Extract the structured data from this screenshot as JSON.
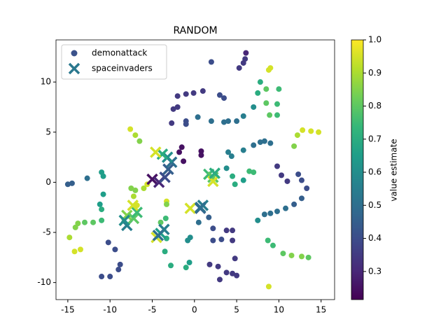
{
  "chart_data": {
    "type": "scatter",
    "title": "RANDOM",
    "xlim": [
      -16.4,
      16.6
    ],
    "ylim": [
      -11.7,
      14.2
    ],
    "xticks": [
      -15,
      -10,
      -5,
      0,
      5,
      10,
      15
    ],
    "yticks": [
      -10,
      -5,
      0,
      5,
      10
    ],
    "legend": "upper left",
    "colormap": "viridis",
    "clim": [
      0.215,
      1.0
    ],
    "cticks": [
      0.3,
      0.4,
      0.5,
      0.6,
      0.7,
      0.8,
      0.9,
      {
        "value": 1.0,
        "label": "1.0"
      }
    ],
    "clabel": "value estimate",
    "series": [
      {
        "name": "demonattack",
        "marker": "circle",
        "color": "#3b528b",
        "x": [
          -15,
          -14.5,
          -11,
          -10.8,
          -12.7,
          -10.8,
          -11.2,
          -11,
          -11,
          -12,
          -13,
          -13.8,
          -14.1,
          -14.8,
          -14.2,
          -13.5,
          -10.2,
          -9.4,
          -8.8,
          -9,
          -10,
          -11,
          -7.6,
          -7,
          -6.5,
          -7.5,
          -7,
          -6,
          -5.6,
          -7.2,
          -6.8,
          -3.3,
          -3.3,
          -4,
          -3.4,
          -3.3,
          -3.5,
          -2.8,
          -1,
          -0.6,
          -0.8,
          -0.5,
          -2.7,
          -2.5,
          -2,
          -2,
          -1,
          -0.1,
          1,
          -1,
          -1,
          0.4,
          2,
          -1.5,
          -1.8,
          -1.3,
          0.8,
          0.8,
          2,
          3,
          3.5,
          5.3,
          5.8,
          6,
          6.1,
          3.5,
          4,
          5,
          5.8,
          7,
          7.5,
          7.8,
          8.5,
          8.8,
          9,
          8.5,
          8.9,
          9.8,
          9.8,
          10,
          3.8,
          4.5,
          4.8,
          5.8,
          6.5,
          7,
          4,
          4.4,
          5.8,
          7,
          7.8,
          8.3,
          9,
          9.8,
          10.3,
          11,
          12.3,
          12.7,
          13.3,
          12.7,
          11.8,
          10.8,
          9.8,
          9,
          8.3,
          7.5,
          8.7,
          9.3,
          10.5,
          11.5,
          12.7,
          13.5,
          8.8,
          11.8,
          12.2,
          12.8,
          13.8,
          14.7,
          0.5,
          1.7,
          2.2,
          2.2,
          3.2,
          3.8,
          4.5,
          4.5,
          1.8,
          2.8,
          3,
          3.8,
          4.5,
          5,
          4.8
        ],
        "y": [
          -0.2,
          -0.1,
          1,
          0.6,
          0.4,
          -1.2,
          -2.2,
          -2.7,
          -3.8,
          -4,
          -4,
          -4.1,
          -4.5,
          -5.5,
          -6.9,
          -6.7,
          -6,
          -6.7,
          -8.2,
          -8.7,
          -9.4,
          -9.4,
          5.3,
          4.7,
          4.1,
          -0.6,
          -0.8,
          -0.6,
          -0.2,
          -1.4,
          -2.3,
          -1.9,
          -2.2,
          -4,
          -3.6,
          -5.6,
          -6.9,
          -8.3,
          -8.5,
          -8,
          -5.8,
          -5.5,
          5.9,
          7.3,
          7.5,
          8.6,
          8.8,
          8.9,
          9.1,
          5.8,
          6.1,
          6.5,
          6.1,
          3.5,
          3,
          2.1,
          3.1,
          2.7,
          12,
          8.7,
          8.4,
          11.4,
          11.9,
          12.3,
          12.9,
          6,
          6.1,
          6.1,
          6.6,
          7.5,
          8.9,
          10,
          9.3,
          11.2,
          11.4,
          7.9,
          6.7,
          7.8,
          6.7,
          9.3,
          1.4,
          0.6,
          -0.2,
          0.2,
          1.1,
          1,
          3,
          2.6,
          3.2,
          3.7,
          4,
          4.1,
          3.9,
          1.6,
          0.7,
          0.1,
          0.8,
          0.2,
          -0.6,
          -1.6,
          -2.2,
          -2.6,
          -2.9,
          -3.1,
          -3.2,
          -3.8,
          -5.8,
          -6.3,
          -7.1,
          -7.3,
          -7.4,
          -7.5,
          -10.4,
          3.6,
          4.7,
          5.2,
          5.1,
          5,
          -4,
          -3.5,
          -4.6,
          -5.8,
          -5.7,
          -4.8,
          -4.8,
          -5.8,
          -8.2,
          -8.4,
          -9.7,
          -9,
          -9.1,
          -9.3,
          -7.6
        ],
        "c": [
          0.45,
          0.45,
          0.65,
          0.65,
          0.5,
          0.65,
          0.65,
          0.7,
          0.75,
          0.8,
          0.8,
          0.85,
          0.85,
          0.9,
          0.95,
          0.95,
          0.4,
          0.4,
          0.4,
          0.4,
          0.4,
          0.4,
          0.95,
          0.9,
          0.85,
          0.85,
          0.85,
          0.9,
          0.95,
          0.9,
          0.95,
          0.95,
          0.85,
          0.8,
          0.75,
          0.7,
          0.7,
          0.7,
          0.7,
          0.65,
          0.6,
          0.6,
          0.35,
          0.35,
          0.35,
          0.35,
          0.35,
          0.35,
          0.35,
          0.4,
          0.4,
          0.5,
          0.5,
          0.25,
          0.25,
          0.25,
          0.25,
          0.25,
          0.4,
          0.4,
          0.4,
          0.35,
          0.35,
          0.35,
          0.3,
          0.5,
          0.5,
          0.5,
          0.55,
          0.6,
          0.7,
          0.7,
          0.8,
          0.95,
          0.95,
          0.8,
          0.8,
          0.75,
          0.75,
          0.75,
          0.6,
          0.7,
          0.7,
          0.65,
          0.75,
          0.75,
          0.55,
          0.55,
          0.55,
          0.5,
          0.5,
          0.5,
          0.5,
          0.35,
          0.35,
          0.35,
          0.4,
          0.4,
          0.4,
          0.45,
          0.45,
          0.5,
          0.5,
          0.5,
          0.5,
          0.6,
          0.75,
          0.75,
          0.8,
          0.85,
          0.85,
          0.8,
          0.95,
          0.85,
          0.9,
          0.95,
          0.95,
          0.95,
          0.5,
          0.45,
          0.4,
          0.4,
          0.4,
          0.35,
          0.35,
          0.35,
          0.35,
          0.35,
          0.35,
          0.35,
          0.35,
          0.35,
          0.35
        ]
      },
      {
        "name": "spaceinvaders",
        "marker": "x",
        "color": "#2a788e",
        "x": [
          -8,
          -8,
          -7.2,
          -6.8,
          -7.3,
          -8.3,
          -5,
          -4.2,
          -3.5,
          -3.1,
          -2.7,
          -3.2,
          -3.8,
          -4.6,
          -4.5,
          -4,
          -3.6,
          -4.3,
          -0.5,
          0.7,
          1,
          0.7,
          1.7,
          2.2,
          2.2,
          2.4
        ],
        "y": [
          -3.3,
          -4.3,
          -3.6,
          -3,
          -2.3,
          -3.8,
          0.3,
          0,
          0.5,
          1.3,
          2,
          2.5,
          2.8,
          3,
          -5.5,
          -5.1,
          -4.7,
          -5.3,
          -2.6,
          -2.6,
          -2.3,
          -2.5,
          0.8,
          0.5,
          0.1,
          0.9
        ],
        "c": [
          0.85,
          0.55,
          0.8,
          0.75,
          0.95,
          0.6,
          0.25,
          0.3,
          0.4,
          0.45,
          0.5,
          0.6,
          0.7,
          0.95,
          0.95,
          0.65,
          0.55,
          0.5,
          0.95,
          0.45,
          0.55,
          0.5,
          0.75,
          0.8,
          0.95,
          0.7
        ]
      }
    ]
  }
}
